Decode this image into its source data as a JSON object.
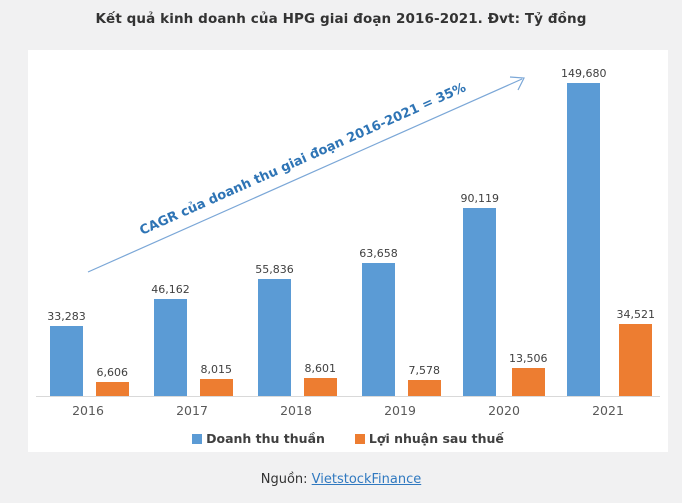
{
  "chart_data": {
    "type": "bar",
    "title": "Kết quả kinh doanh của HPG giai đoạn 2016-2021. Đvt: Tỷ đồng",
    "unit": "Tỷ đồng",
    "categories": [
      "2016",
      "2017",
      "2018",
      "2019",
      "2020",
      "2021"
    ],
    "series": [
      {
        "name": "Doanh thu thuần",
        "color": "#5B9BD5",
        "values": [
          33283,
          46162,
          55836,
          63658,
          90119,
          149680
        ],
        "labels": [
          "33,283",
          "46,162",
          "55,836",
          "63,658",
          "90,119",
          "149,680"
        ]
      },
      {
        "name": "Lợi nhuận sau thuế",
        "color": "#ED7D31",
        "values": [
          6606,
          8015,
          8601,
          7578,
          13506,
          34521
        ],
        "labels": [
          "6,606",
          "8,015",
          "8,601",
          "7,578",
          "13,506",
          "34,521"
        ]
      }
    ],
    "annotation": "CAGR của doanh thu giai đoạn 2016-2021 = 35%",
    "ylim": [
      0,
      160000
    ],
    "grid": false,
    "legend_position": "bottom",
    "data_labels": true
  },
  "source": {
    "prefix": "Nguồn: ",
    "link_text": "VietstockFinance"
  },
  "colors": {
    "revenue_bar": "#5B9BD5",
    "profit_bar": "#ED7D31",
    "annotation_text": "#2E74B5",
    "arrow_line": "#7BA7D7",
    "link": "#3079C0",
    "axis_line": "#D9D9D9",
    "background": "#F1F1F2",
    "panel": "#FFFFFF"
  }
}
